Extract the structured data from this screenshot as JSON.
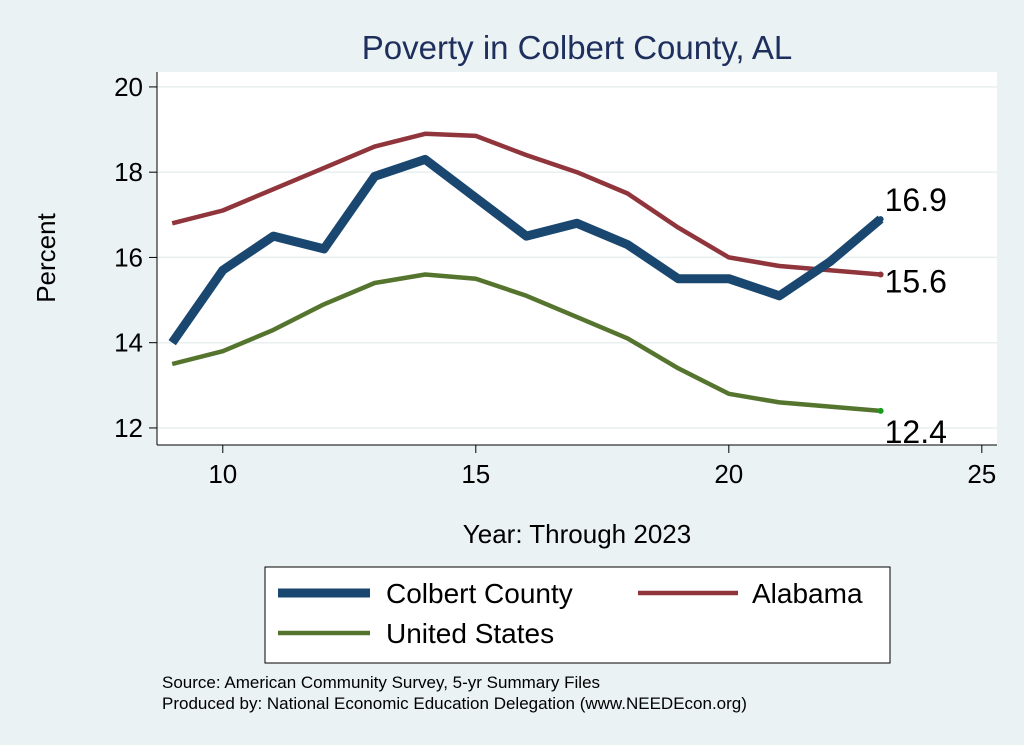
{
  "chart_data": {
    "type": "line",
    "title": "Poverty in Colbert County, AL",
    "xlabel": "Year: Through 2023",
    "ylabel": "Percent",
    "xlim": [
      8.7,
      25.3
    ],
    "ylim": [
      11.6,
      20.35
    ],
    "xticks": [
      10,
      15,
      20,
      25
    ],
    "yticks": [
      12,
      14,
      16,
      18,
      20
    ],
    "grid": true,
    "series": [
      {
        "name": "Colbert County",
        "color": "#1a476f",
        "width": 9,
        "x": [
          9,
          10,
          11,
          12,
          13,
          14,
          15,
          16,
          17,
          18,
          19,
          20,
          21,
          22,
          23
        ],
        "y": [
          14.0,
          15.7,
          16.5,
          16.2,
          17.9,
          18.3,
          17.4,
          16.5,
          16.8,
          16.3,
          15.5,
          15.5,
          15.1,
          15.9,
          16.9
        ],
        "end_label": "16.9"
      },
      {
        "name": "Alabama",
        "color": "#90353b",
        "width": 4.5,
        "x": [
          9,
          10,
          11,
          12,
          13,
          14,
          15,
          16,
          17,
          18,
          19,
          20,
          21,
          22,
          23
        ],
        "y": [
          16.8,
          17.1,
          17.6,
          18.1,
          18.6,
          18.9,
          18.85,
          18.4,
          18.0,
          17.5,
          16.7,
          16.0,
          15.8,
          15.7,
          15.6
        ],
        "end_label": "15.6"
      },
      {
        "name": "United States",
        "color": "#55752f",
        "width": 4.5,
        "x": [
          9,
          10,
          11,
          12,
          13,
          14,
          15,
          16,
          17,
          18,
          19,
          20,
          21,
          22,
          23
        ],
        "y": [
          13.5,
          13.8,
          14.3,
          14.9,
          15.4,
          15.6,
          15.5,
          15.1,
          14.6,
          14.1,
          13.4,
          12.8,
          12.6,
          12.5,
          12.4
        ],
        "end_label": "12.4"
      }
    ],
    "legend": {
      "position": "bottom",
      "entries": [
        "Colbert County",
        "Alabama",
        "United States"
      ]
    },
    "notes": [
      "Source: American Community Survey, 5-yr Summary Files",
      "Produced by: National Economic Education Delegation (www.NEEDEcon.org)"
    ]
  },
  "colors": {
    "background": "#eaf2f3",
    "plot": "#ffffff",
    "title": "#1e2f5e",
    "grid": "#e8efef"
  }
}
